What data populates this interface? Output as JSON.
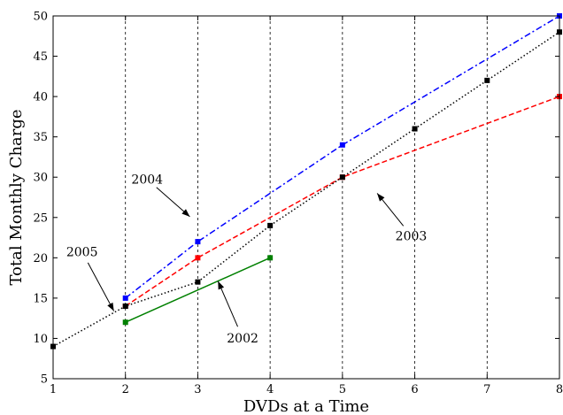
{
  "chart_data": {
    "type": "line",
    "title": "",
    "xlabel": "DVDs at a Time",
    "ylabel": "Total Monthly Charge",
    "xlim": [
      1,
      8
    ],
    "ylim": [
      5,
      50
    ],
    "xticks": [
      "1",
      "2",
      "3",
      "4",
      "5",
      "6",
      "7",
      "8"
    ],
    "yticks": [
      "5",
      "10",
      "15",
      "20",
      "25",
      "30",
      "35",
      "40",
      "45",
      "50"
    ],
    "grid": "vertical dashed lines at integer x",
    "legend": "none (inline arrow annotations)",
    "series": [
      {
        "name": "2004",
        "color": "#0000ff",
        "line_style": "dash-dot",
        "points": [
          [
            2,
            15
          ],
          [
            3,
            22
          ],
          [
            5,
            34
          ],
          [
            8,
            50
          ]
        ]
      },
      {
        "name": "2003",
        "color": "#ff0000",
        "line_style": "dashed",
        "points": [
          [
            2,
            14
          ],
          [
            3,
            20
          ],
          [
            5,
            30
          ],
          [
            8,
            40
          ]
        ]
      },
      {
        "name": "2005",
        "color": "#000000",
        "line_style": "dotted",
        "points": [
          [
            1,
            9
          ],
          [
            2,
            14
          ],
          [
            3,
            17
          ],
          [
            4,
            24
          ],
          [
            5,
            30
          ],
          [
            6,
            36
          ],
          [
            7,
            42
          ],
          [
            8,
            48
          ]
        ]
      },
      {
        "name": "2002",
        "color": "#008000",
        "line_style": "solid",
        "points": [
          [
            2,
            12
          ],
          [
            4,
            20
          ]
        ]
      }
    ],
    "annotations": [
      {
        "text": "2004",
        "series": "2004",
        "label_at": [
          2.3,
          29.2
        ],
        "arrow_to": [
          2.89,
          25.1
        ]
      },
      {
        "text": "2003",
        "series": "2003",
        "label_at": [
          5.95,
          22.2
        ],
        "arrow_to": [
          5.48,
          28.0
        ]
      },
      {
        "text": "2005",
        "series": "2005",
        "label_at": [
          1.4,
          20.2
        ],
        "arrow_to": [
          1.84,
          13.4
        ]
      },
      {
        "text": "2002",
        "series": "2002",
        "label_at": [
          3.62,
          9.5
        ],
        "arrow_to": [
          3.28,
          17.1
        ]
      }
    ]
  }
}
